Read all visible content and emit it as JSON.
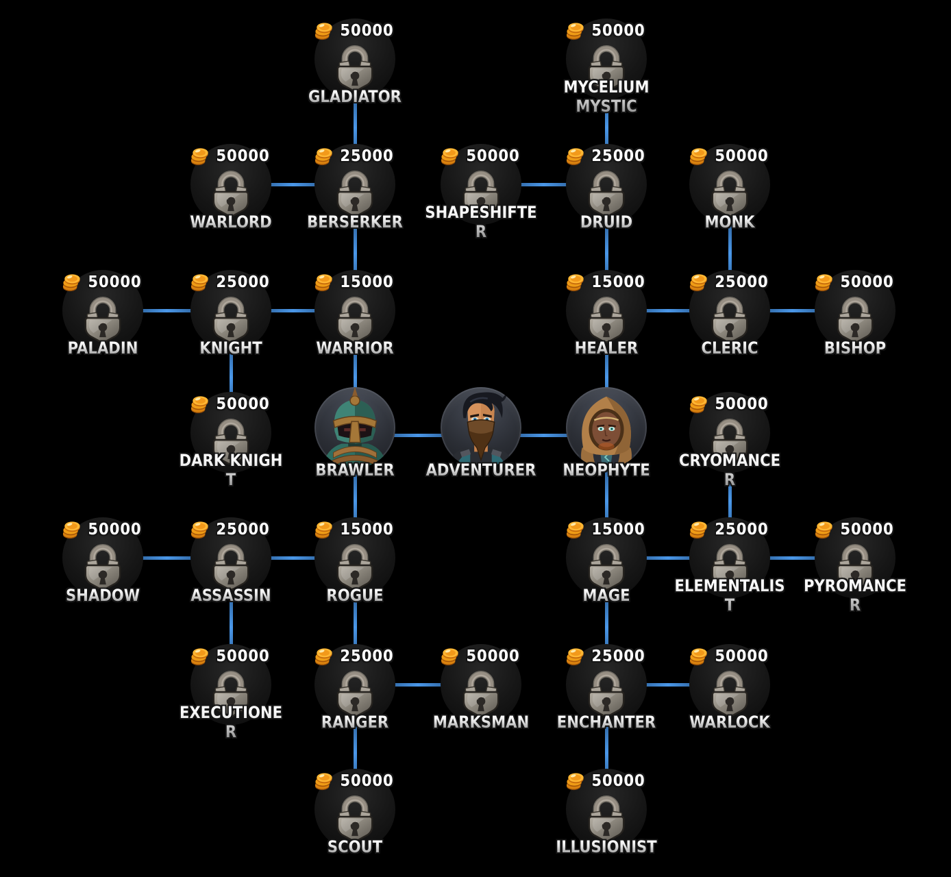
{
  "screen": {
    "background": "#000000"
  },
  "colors": {
    "edge_bright": "#4a97e8",
    "edge_dark": "#16365c",
    "cost_text": "#ffffff",
    "label_top": "#ffffff",
    "label_bottom": "#969696",
    "coin_gold": "#ffb733",
    "coin_rim": "#c66c0c",
    "lock_metal": "#8e897f"
  },
  "icons": {
    "coin": "coin-icon",
    "lock": "lock-icon"
  },
  "tree": {
    "nodes": [
      {
        "id": "gladiator",
        "label": "GLADIATOR",
        "cost": "50000",
        "kind": "locked",
        "col": "C",
        "row": 1
      },
      {
        "id": "mycelium-mystic",
        "label": "MYCELIUM MYSTIC",
        "cost": "50000",
        "kind": "locked",
        "col": "E",
        "row": 1
      },
      {
        "id": "warlord",
        "label": "WARLORD",
        "cost": "50000",
        "kind": "locked",
        "col": "B",
        "row": 2
      },
      {
        "id": "berserker",
        "label": "BERSERKER",
        "cost": "25000",
        "kind": "locked",
        "col": "C",
        "row": 2
      },
      {
        "id": "shapeshifter",
        "label": "SHAPESHIFTER",
        "cost": "50000",
        "kind": "locked",
        "col": "D",
        "row": 2
      },
      {
        "id": "druid",
        "label": "DRUID",
        "cost": "25000",
        "kind": "locked",
        "col": "E",
        "row": 2
      },
      {
        "id": "monk",
        "label": "MONK",
        "cost": "50000",
        "kind": "locked",
        "col": "F",
        "row": 2
      },
      {
        "id": "paladin",
        "label": "PALADIN",
        "cost": "50000",
        "kind": "locked",
        "col": "A",
        "row": 3
      },
      {
        "id": "knight",
        "label": "KNIGHT",
        "cost": "25000",
        "kind": "locked",
        "col": "B",
        "row": 3
      },
      {
        "id": "warrior",
        "label": "WARRIOR",
        "cost": "15000",
        "kind": "locked",
        "col": "C",
        "row": 3
      },
      {
        "id": "healer",
        "label": "HEALER",
        "cost": "15000",
        "kind": "locked",
        "col": "E",
        "row": 3
      },
      {
        "id": "cleric",
        "label": "CLERIC",
        "cost": "25000",
        "kind": "locked",
        "col": "F",
        "row": 3
      },
      {
        "id": "bishop",
        "label": "BISHOP",
        "cost": "50000",
        "kind": "locked",
        "col": "G",
        "row": 3
      },
      {
        "id": "dark-knight",
        "label": "DARK KNIGHT",
        "cost": "50000",
        "kind": "locked",
        "col": "B",
        "row": 4
      },
      {
        "id": "brawler",
        "label": "BRAWLER",
        "cost": null,
        "kind": "character",
        "col": "C",
        "row": 4,
        "portrait": "brawler"
      },
      {
        "id": "adventurer",
        "label": "ADVENTURER",
        "cost": null,
        "kind": "character",
        "col": "D",
        "row": 4,
        "portrait": "adventurer"
      },
      {
        "id": "neophyte",
        "label": "NEOPHYTE",
        "cost": null,
        "kind": "character",
        "col": "E",
        "row": 4,
        "portrait": "neophyte"
      },
      {
        "id": "cryomancer",
        "label": "CRYOMANCER",
        "cost": "50000",
        "kind": "locked",
        "col": "F",
        "row": 4
      },
      {
        "id": "shadow",
        "label": "SHADOW",
        "cost": "50000",
        "kind": "locked",
        "col": "A",
        "row": 5
      },
      {
        "id": "assassin",
        "label": "ASSASSIN",
        "cost": "25000",
        "kind": "locked",
        "col": "B",
        "row": 5
      },
      {
        "id": "rogue",
        "label": "ROGUE",
        "cost": "15000",
        "kind": "locked",
        "col": "C",
        "row": 5
      },
      {
        "id": "mage",
        "label": "MAGE",
        "cost": "15000",
        "kind": "locked",
        "col": "E",
        "row": 5
      },
      {
        "id": "elementalist",
        "label": "ELEMENTALIST",
        "cost": "25000",
        "kind": "locked",
        "col": "F",
        "row": 5
      },
      {
        "id": "pyromancer",
        "label": "PYROMANCER",
        "cost": "50000",
        "kind": "locked",
        "col": "G",
        "row": 5
      },
      {
        "id": "executioner",
        "label": "EXECUTIONER",
        "cost": "50000",
        "kind": "locked",
        "col": "B",
        "row": 6
      },
      {
        "id": "ranger",
        "label": "RANGER",
        "cost": "25000",
        "kind": "locked",
        "col": "C",
        "row": 6
      },
      {
        "id": "marksman",
        "label": "MARKSMAN",
        "cost": "50000",
        "kind": "locked",
        "col": "D",
        "row": 6
      },
      {
        "id": "enchanter",
        "label": "ENCHANTER",
        "cost": "25000",
        "kind": "locked",
        "col": "E",
        "row": 6
      },
      {
        "id": "warlock",
        "label": "WARLOCK",
        "cost": "50000",
        "kind": "locked",
        "col": "F",
        "row": 6
      },
      {
        "id": "scout",
        "label": "SCOUT",
        "cost": "50000",
        "kind": "locked",
        "col": "C",
        "row": 7
      },
      {
        "id": "illusionist",
        "label": "ILLUSIONIST",
        "cost": "50000",
        "kind": "locked",
        "col": "E",
        "row": 7
      }
    ],
    "edges": [
      [
        "gladiator",
        "berserker"
      ],
      [
        "mycelium-mystic",
        "druid"
      ],
      [
        "warlord",
        "berserker"
      ],
      [
        "shapeshifter",
        "druid"
      ],
      [
        "berserker",
        "warrior"
      ],
      [
        "druid",
        "healer"
      ],
      [
        "monk",
        "cleric"
      ],
      [
        "paladin",
        "knight"
      ],
      [
        "knight",
        "warrior"
      ],
      [
        "healer",
        "cleric"
      ],
      [
        "cleric",
        "bishop"
      ],
      [
        "knight",
        "dark-knight"
      ],
      [
        "warrior",
        "brawler"
      ],
      [
        "healer",
        "neophyte"
      ],
      [
        "brawler",
        "adventurer"
      ],
      [
        "adventurer",
        "neophyte"
      ],
      [
        "cryomancer",
        "elementalist"
      ],
      [
        "brawler",
        "rogue"
      ],
      [
        "neophyte",
        "mage"
      ],
      [
        "shadow",
        "assassin"
      ],
      [
        "assassin",
        "rogue"
      ],
      [
        "mage",
        "elementalist"
      ],
      [
        "elementalist",
        "pyromancer"
      ],
      [
        "assassin",
        "executioner"
      ],
      [
        "rogue",
        "ranger"
      ],
      [
        "mage",
        "enchanter"
      ],
      [
        "ranger",
        "marksman"
      ],
      [
        "enchanter",
        "warlock"
      ],
      [
        "ranger",
        "scout"
      ],
      [
        "enchanter",
        "illusionist"
      ]
    ]
  }
}
